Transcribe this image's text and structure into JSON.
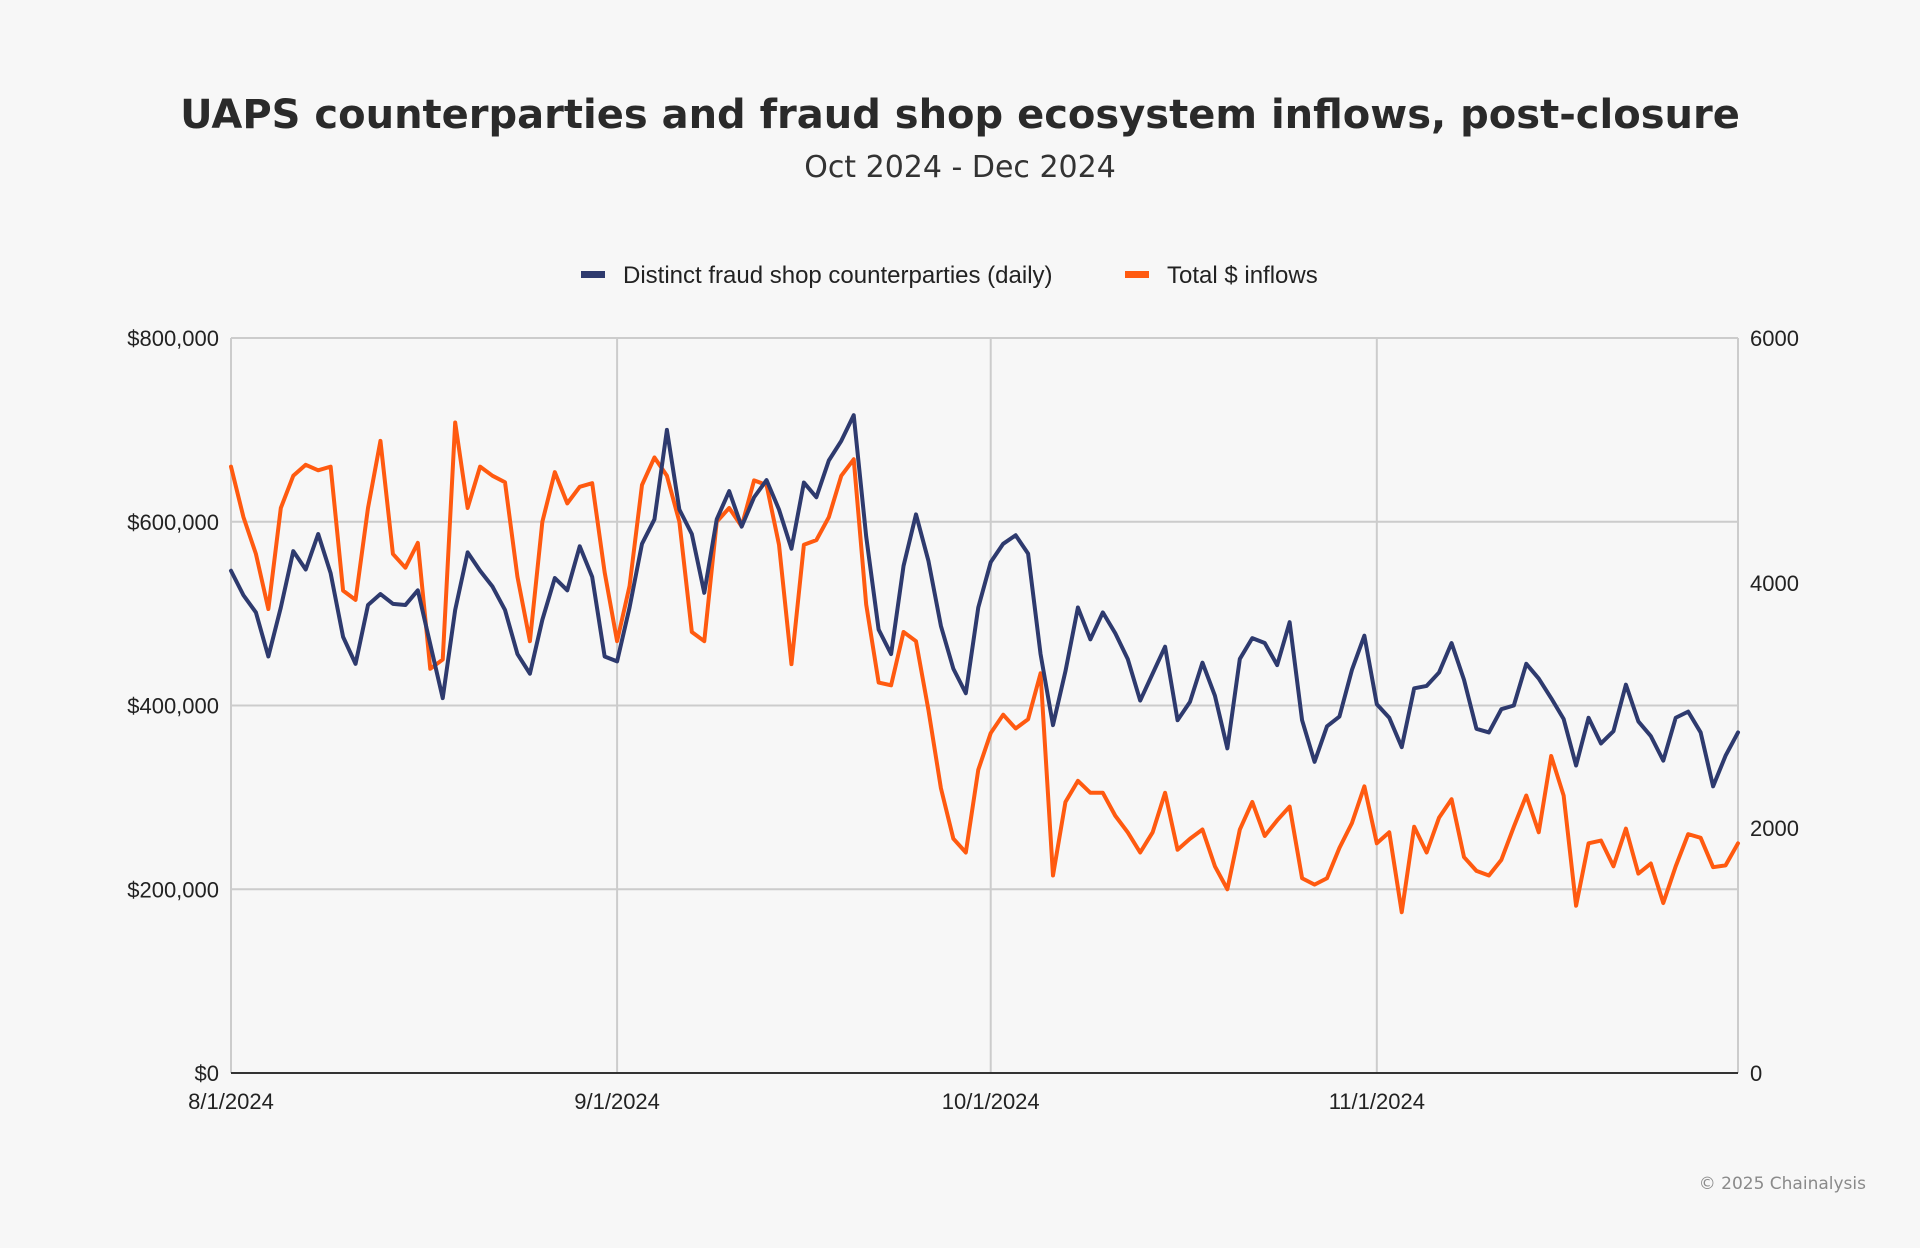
{
  "chart_data": {
    "type": "line",
    "title": "UAPS counterparties and fraud shop ecosystem inflows, post-closure",
    "subtitle": "Oct 2024 - Dec 2024",
    "x_start": "2024-08-01",
    "x_tick_labels": [
      "8/1/2024",
      "9/1/2024",
      "10/1/2024",
      "11/1/2024"
    ],
    "x_tick_day_offsets": [
      0,
      31,
      61,
      92
    ],
    "x_range_days": [
      0,
      121
    ],
    "y_left": {
      "label": "",
      "range": [
        0,
        800000
      ],
      "tick_values": [
        0,
        200000,
        400000,
        600000,
        800000
      ],
      "tick_labels": [
        "$0",
        "$200,000",
        "$400,000",
        "$600,000",
        "$800,000"
      ]
    },
    "y_right": {
      "label": "",
      "range": [
        0,
        6000
      ],
      "tick_values": [
        0,
        2000,
        4000,
        6000
      ],
      "tick_labels": [
        "0",
        "2000",
        "4000",
        "6000"
      ]
    },
    "grid": true,
    "legend_position": "top-center",
    "series": [
      {
        "name": "Distinct fraud shop counterparties (daily)",
        "axis": "right",
        "color": "#2e3a6e",
        "values": [
          4100,
          3900,
          3760,
          3400,
          3800,
          4260,
          4110,
          4400,
          4080,
          3560,
          3340,
          3820,
          3910,
          3830,
          3820,
          3940,
          3500,
          3060,
          3780,
          4250,
          4100,
          3970,
          3780,
          3420,
          3260,
          3700,
          4040,
          3940,
          4300,
          4050,
          3400,
          3360,
          3800,
          4320,
          4520,
          5250,
          4600,
          4400,
          3920,
          4520,
          4750,
          4460,
          4700,
          4840,
          4600,
          4280,
          4820,
          4700,
          5000,
          5160,
          5370,
          4380,
          3620,
          3420,
          4140,
          4560,
          4180,
          3650,
          3300,
          3100,
          3800,
          4170,
          4320,
          4390,
          4240,
          3420,
          2840,
          3280,
          3800,
          3540,
          3760,
          3590,
          3380,
          3040,
          3260,
          3480,
          2880,
          3030,
          3350,
          3080,
          2650,
          3380,
          3550,
          3510,
          3330,
          3680,
          2880,
          2540,
          2830,
          2910,
          3290,
          3570,
          3010,
          2900,
          2660,
          3140,
          3160,
          3270,
          3510,
          3210,
          2810,
          2780,
          2970,
          3000,
          3340,
          3220,
          3060,
          2890,
          2510,
          2900,
          2690,
          2790,
          3170,
          2870,
          2750,
          2550,
          2900,
          2950,
          2780,
          2340,
          2590,
          2780
        ]
      },
      {
        "name": "Total $ inflows",
        "axis": "left",
        "color": "#ff5a10",
        "values": [
          660000,
          605000,
          565000,
          505000,
          615000,
          650000,
          662000,
          656000,
          660000,
          525000,
          515000,
          615000,
          688000,
          565000,
          550000,
          577000,
          440000,
          450000,
          708000,
          615000,
          660000,
          650000,
          643000,
          540000,
          470000,
          600000,
          654000,
          620000,
          638000,
          642000,
          545000,
          470000,
          530000,
          640000,
          670000,
          650000,
          600000,
          480000,
          470000,
          600000,
          615000,
          595000,
          645000,
          640000,
          575000,
          445000,
          575000,
          580000,
          605000,
          650000,
          668000,
          510000,
          425000,
          422000,
          480000,
          470000,
          395000,
          310000,
          255000,
          240000,
          330000,
          370000,
          390000,
          375000,
          385000,
          435000,
          215000,
          295000,
          318000,
          305000,
          305000,
          280000,
          262000,
          240000,
          262000,
          305000,
          243000,
          255000,
          265000,
          225000,
          200000,
          265000,
          295000,
          258000,
          275000,
          290000,
          212000,
          205000,
          212000,
          245000,
          272000,
          312000,
          250000,
          262000,
          175000,
          268000,
          240000,
          278000,
          298000,
          235000,
          220000,
          215000,
          232000,
          268000,
          302000,
          262000,
          345000,
          302000,
          182000,
          250000,
          253000,
          225000,
          266000,
          217000,
          228000,
          185000,
          225000,
          260000,
          256000,
          224000,
          226000,
          250000
        ]
      }
    ]
  },
  "copyright": "© 2025 Chainalysis"
}
